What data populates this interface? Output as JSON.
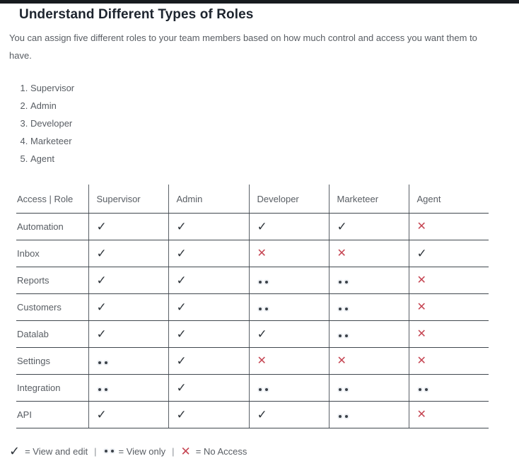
{
  "colors": {
    "top_bar": "#171b1f",
    "heading_text": "#1d242e",
    "body_text": "#585d63",
    "border_horizontal": "#40474e",
    "border_vertical": "#5a6067",
    "check_mark": "#2f353b",
    "cross_mark": "#c64653",
    "dot_mark": "#3b4148"
  },
  "marks": {
    "edit_glyph": "✓",
    "none_glyph": "✕"
  },
  "page": {
    "title": "Understand Different Types of Roles",
    "intro": "You can assign five different roles to your team members based on how much control and access you want them to have.",
    "roles": [
      "Supervisor",
      "Admin",
      "Developer",
      "Marketeer",
      "Agent"
    ]
  },
  "table": {
    "columns": [
      "Access | Role",
      "Supervisor",
      "Admin",
      "Developer",
      "Marketeer",
      "Agent"
    ],
    "rows": [
      {
        "label": "Automation",
        "access": [
          "edit",
          "edit",
          "edit",
          "edit",
          "none"
        ]
      },
      {
        "label": "Inbox",
        "access": [
          "edit",
          "edit",
          "none",
          "none",
          "edit"
        ]
      },
      {
        "label": "Reports",
        "access": [
          "edit",
          "edit",
          "view",
          "view",
          "none"
        ]
      },
      {
        "label": "Customers",
        "access": [
          "edit",
          "edit",
          "view",
          "view",
          "none"
        ]
      },
      {
        "label": "Datalab",
        "access": [
          "edit",
          "edit",
          "edit",
          "view",
          "none"
        ]
      },
      {
        "label": "Settings",
        "access": [
          "view",
          "edit",
          "none",
          "none",
          "none"
        ]
      },
      {
        "label": "Integration",
        "access": [
          "view",
          "edit",
          "view",
          "view",
          "view"
        ]
      },
      {
        "label": "API",
        "access": [
          "edit",
          "edit",
          "edit",
          "view",
          "none"
        ]
      }
    ]
  },
  "legend": {
    "separator": "|",
    "items": [
      {
        "mark": "edit",
        "text": "= View and edit"
      },
      {
        "mark": "view",
        "text": "= View only"
      },
      {
        "mark": "none",
        "text": "= No Access"
      }
    ]
  }
}
